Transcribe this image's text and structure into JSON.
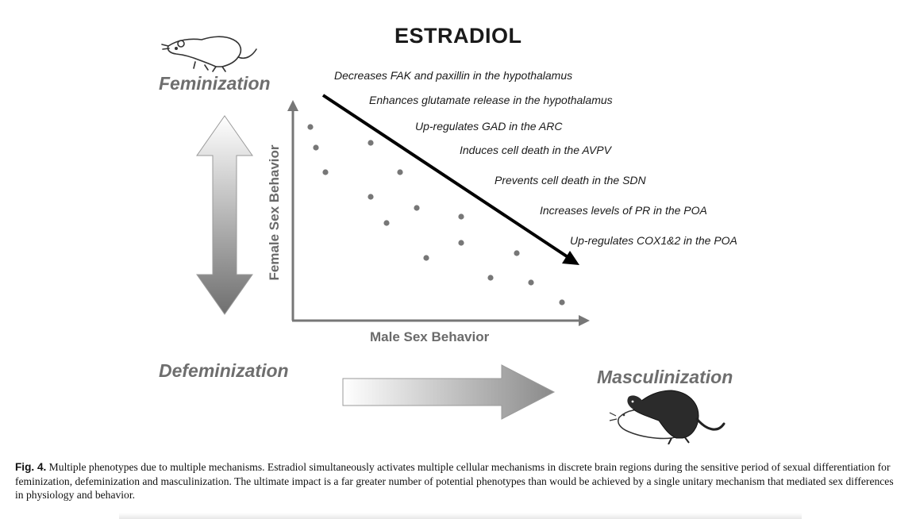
{
  "figure": {
    "title": "ESTRADIOL",
    "phenotypes": {
      "feminization": "Feminization",
      "defeminization": "Defeminization",
      "masculinization": "Masculinization"
    },
    "y_axis_label": "Female Sex Behavior",
    "x_axis_label": "Male Sex Behavior",
    "mechanisms": [
      "Decreases FAK and paxillin  in the hypothalamus",
      "Enhances glutamate release in the hypothalamus",
      "Up-regulates GAD in the ARC",
      "Induces cell death in the AVPV",
      "Prevents cell death in the SDN",
      "Increases levels of PR in the POA",
      "Up-regulates COX1&2 in the POA"
    ],
    "colors": {
      "arrow": "#000000",
      "dots": "#777777",
      "axis": "#777777",
      "label": "#6e6e6e"
    },
    "icons": [
      "rat-feminine-icon",
      "rat-masculine-mounting-icon"
    ]
  },
  "caption": {
    "label": "Fig. 4.",
    "text": " Multiple phenotypes due to multiple mechanisms. Estradiol simultaneously activates multiple cellular mechanisms in discrete brain regions during the sensitive period of sexual differentiation for feminization, defeminization and masculinization. The ultimate impact is a far greater number of potential phenotypes than would be achieved by a single unitary mechanism that mediated sex differences in physiology and behavior."
  }
}
